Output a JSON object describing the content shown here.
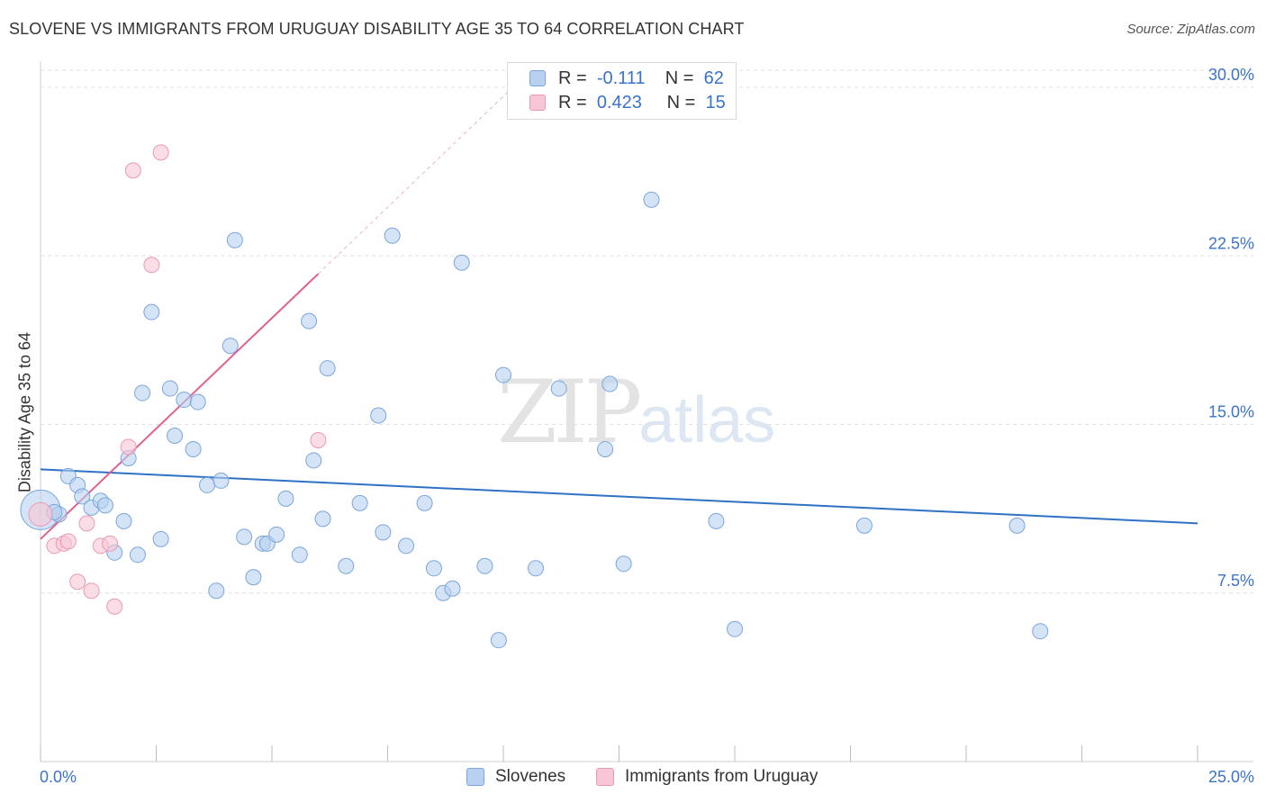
{
  "header": {
    "title": "SLOVENE VS IMMIGRANTS FROM URUGUAY DISABILITY AGE 35 TO 64 CORRELATION CHART",
    "source": "Source: ZipAtlas.com"
  },
  "watermark": {
    "zip": "ZIP",
    "atlas": "atlas"
  },
  "legend": {
    "rows": [
      {
        "r_label": "R =",
        "r_value": "-0.111",
        "n_label": "N =",
        "n_value": "62"
      },
      {
        "r_label": "R =",
        "r_value": "0.423",
        "n_label": "N =",
        "n_value": "15"
      }
    ]
  },
  "bottom_legend": {
    "series1": "Slovenes",
    "series2": "Immigrants from Uruguay"
  },
  "colors": {
    "blue_fill": "#b8d1f0",
    "blue_stroke": "#7aa6dc",
    "blue_line": "#2f72c4",
    "pink_fill": "#f8c6d6",
    "pink_stroke": "#e89ab4",
    "pink_line": "#e0628c",
    "grid": "#e2e2e2",
    "tick_text": "#3a73c8"
  },
  "chart_data": {
    "type": "scatter",
    "title": "SLOVENE VS IMMIGRANTS FROM URUGUAY DISABILITY AGE 35 TO 64 CORRELATION CHART",
    "xlabel": "",
    "ylabel": "Disability Age 35 to 64",
    "xlim": [
      0,
      25
    ],
    "ylim": [
      0,
      30
    ],
    "x_tick_labels": [
      "0.0%",
      "25.0%"
    ],
    "y_ticks": [
      7.5,
      15.0,
      22.5,
      30.0
    ],
    "y_tick_labels": [
      "7.5%",
      "15.0%",
      "22.5%",
      "30.0%"
    ],
    "grid": true,
    "legend_placement": "top-center",
    "series": [
      {
        "name": "Slovenes",
        "color": "#b8d1f0",
        "r": -0.111,
        "n": 62,
        "trend": {
          "x": [
            0,
            25
          ],
          "y": [
            13.0,
            10.6
          ]
        },
        "points": [
          {
            "x": 0.0,
            "y": 11.2,
            "big": true
          },
          {
            "x": 0.4,
            "y": 11.0
          },
          {
            "x": 0.6,
            "y": 12.7
          },
          {
            "x": 0.8,
            "y": 12.3
          },
          {
            "x": 0.9,
            "y": 11.8
          },
          {
            "x": 1.1,
            "y": 11.3
          },
          {
            "x": 1.3,
            "y": 11.6
          },
          {
            "x": 1.4,
            "y": 11.4
          },
          {
            "x": 1.6,
            "y": 9.3
          },
          {
            "x": 1.8,
            "y": 10.7
          },
          {
            "x": 1.9,
            "y": 13.5
          },
          {
            "x": 2.1,
            "y": 9.2
          },
          {
            "x": 2.2,
            "y": 16.4
          },
          {
            "x": 2.4,
            "y": 20.0
          },
          {
            "x": 2.6,
            "y": 9.9
          },
          {
            "x": 2.8,
            "y": 16.6
          },
          {
            "x": 2.9,
            "y": 14.5
          },
          {
            "x": 3.1,
            "y": 16.1
          },
          {
            "x": 3.3,
            "y": 13.9
          },
          {
            "x": 3.4,
            "y": 16.0
          },
          {
            "x": 3.6,
            "y": 12.3
          },
          {
            "x": 3.8,
            "y": 7.6
          },
          {
            "x": 3.9,
            "y": 12.5
          },
          {
            "x": 4.1,
            "y": 18.5
          },
          {
            "x": 4.2,
            "y": 23.2
          },
          {
            "x": 4.4,
            "y": 10.0
          },
          {
            "x": 4.6,
            "y": 8.2
          },
          {
            "x": 4.8,
            "y": 9.7
          },
          {
            "x": 4.9,
            "y": 9.7
          },
          {
            "x": 5.1,
            "y": 10.1
          },
          {
            "x": 5.3,
            "y": 11.7
          },
          {
            "x": 5.6,
            "y": 9.2
          },
          {
            "x": 5.8,
            "y": 19.6
          },
          {
            "x": 5.9,
            "y": 13.4
          },
          {
            "x": 6.1,
            "y": 10.8
          },
          {
            "x": 6.2,
            "y": 17.5
          },
          {
            "x": 6.6,
            "y": 8.7
          },
          {
            "x": 6.9,
            "y": 11.5
          },
          {
            "x": 7.3,
            "y": 15.4
          },
          {
            "x": 7.4,
            "y": 10.2
          },
          {
            "x": 7.6,
            "y": 23.4
          },
          {
            "x": 7.9,
            "y": 9.6
          },
          {
            "x": 8.3,
            "y": 11.5
          },
          {
            "x": 8.5,
            "y": 8.6
          },
          {
            "x": 8.7,
            "y": 7.5
          },
          {
            "x": 8.9,
            "y": 7.7
          },
          {
            "x": 9.1,
            "y": 22.2
          },
          {
            "x": 9.6,
            "y": 8.7
          },
          {
            "x": 9.9,
            "y": 5.4
          },
          {
            "x": 10.0,
            "y": 17.2
          },
          {
            "x": 10.7,
            "y": 8.6
          },
          {
            "x": 11.2,
            "y": 16.6
          },
          {
            "x": 12.2,
            "y": 13.9
          },
          {
            "x": 12.3,
            "y": 16.8
          },
          {
            "x": 12.6,
            "y": 8.8
          },
          {
            "x": 13.2,
            "y": 25.0
          },
          {
            "x": 14.6,
            "y": 10.7
          },
          {
            "x": 15.0,
            "y": 5.9
          },
          {
            "x": 17.8,
            "y": 10.5
          },
          {
            "x": 21.1,
            "y": 10.5
          },
          {
            "x": 21.6,
            "y": 5.8
          },
          {
            "x": 0.3,
            "y": 11.1
          }
        ]
      },
      {
        "name": "Immigrants from Uruguay",
        "color": "#f8c6d6",
        "r": 0.423,
        "n": 15,
        "trend": {
          "x": [
            0,
            6.0
          ],
          "y": [
            9.9,
            21.7
          ],
          "dashed_to": {
            "x": 10.1,
            "y": 29.8
          }
        },
        "points": [
          {
            "x": 0.0,
            "y": 11.0,
            "big": true
          },
          {
            "x": 0.3,
            "y": 9.6
          },
          {
            "x": 0.5,
            "y": 9.7
          },
          {
            "x": 0.6,
            "y": 9.8
          },
          {
            "x": 0.8,
            "y": 8.0
          },
          {
            "x": 1.0,
            "y": 10.6
          },
          {
            "x": 1.1,
            "y": 7.6
          },
          {
            "x": 1.3,
            "y": 9.6
          },
          {
            "x": 1.5,
            "y": 9.7
          },
          {
            "x": 1.6,
            "y": 6.9
          },
          {
            "x": 1.9,
            "y": 14.0
          },
          {
            "x": 2.0,
            "y": 26.3
          },
          {
            "x": 2.4,
            "y": 22.1
          },
          {
            "x": 2.6,
            "y": 27.1
          },
          {
            "x": 6.0,
            "y": 14.3
          }
        ]
      }
    ]
  }
}
